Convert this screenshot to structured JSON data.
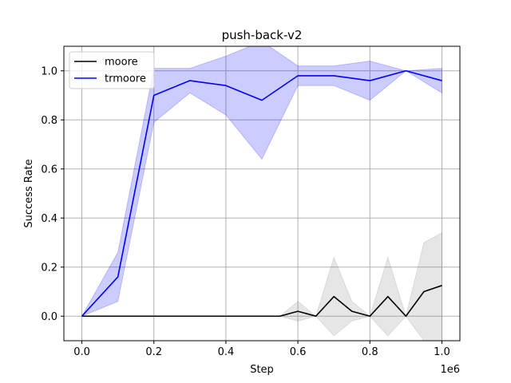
{
  "chart_data": {
    "type": "line",
    "title": "push-back-v2",
    "xlabel": "Step",
    "ylabel": "Success Rate",
    "x_offset_label": "1e6",
    "xlim": [
      -0.05,
      1.05
    ],
    "ylim": [
      -0.1,
      1.1
    ],
    "xticks": [
      0.0,
      0.2,
      0.4,
      0.6,
      0.8,
      1.0
    ],
    "xtick_labels": [
      "0.0",
      "0.2",
      "0.4",
      "0.6",
      "0.8",
      "1.0"
    ],
    "yticks": [
      0.0,
      0.2,
      0.4,
      0.6,
      0.8,
      1.0
    ],
    "ytick_labels": [
      "0.0",
      "0.2",
      "0.4",
      "0.6",
      "0.8",
      "1.0"
    ],
    "grid": true,
    "legend_position": "top-left",
    "series": [
      {
        "name": "moore",
        "color": "#000000",
        "band_color": "#808080",
        "x": [
          0,
          0.1,
          0.2,
          0.3,
          0.4,
          0.5,
          0.55,
          0.6,
          0.65,
          0.7,
          0.75,
          0.8,
          0.85,
          0.9,
          0.95,
          1.0
        ],
        "y": [
          0,
          0,
          0,
          0,
          0,
          0,
          0,
          0.02,
          0,
          0.08,
          0.02,
          0,
          0.08,
          0,
          0.1,
          0.125
        ],
        "lower": [
          0,
          0,
          0,
          0,
          0,
          0,
          0,
          -0.02,
          0,
          -0.08,
          -0.02,
          0,
          -0.08,
          0,
          -0.1,
          -0.1
        ],
        "upper": [
          0,
          0,
          0,
          0,
          0,
          0,
          0,
          0.06,
          0,
          0.24,
          0.06,
          0,
          0.24,
          0,
          0.3,
          0.34
        ]
      },
      {
        "name": "trmoore",
        "color": "#0000ff",
        "band_color": "#0000ff",
        "x": [
          0,
          0.1,
          0.2,
          0.3,
          0.4,
          0.5,
          0.6,
          0.7,
          0.8,
          0.9,
          1.0
        ],
        "y": [
          0,
          0.16,
          0.9,
          0.96,
          0.94,
          0.88,
          0.98,
          0.98,
          0.96,
          1.0,
          0.96
        ],
        "lower": [
          0,
          0.06,
          0.79,
          0.91,
          0.82,
          0.64,
          0.94,
          0.94,
          0.88,
          1.0,
          0.91
        ],
        "upper": [
          0,
          0.26,
          1.01,
          1.01,
          1.06,
          1.12,
          1.02,
          1.02,
          1.04,
          1.0,
          1.01
        ]
      }
    ]
  }
}
